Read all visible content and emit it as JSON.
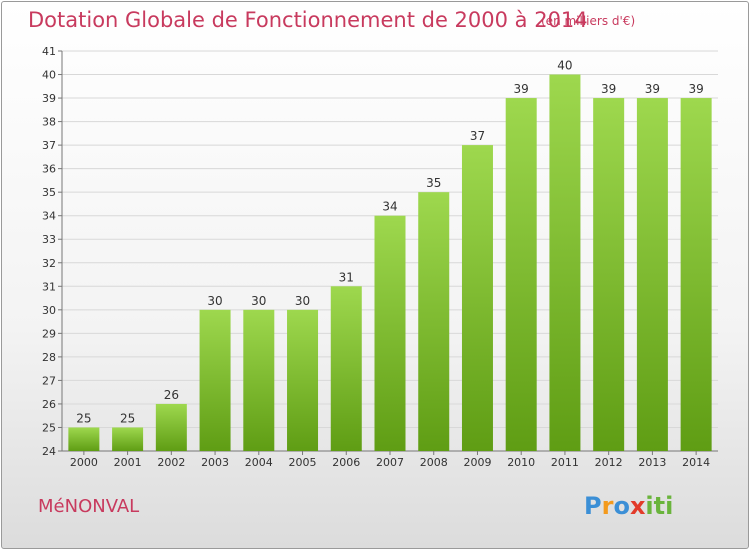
{
  "header": {
    "title": "Dotation Globale de Fonctionnement de 2000 à 2014",
    "subtitle": "(en milliers d'€)"
  },
  "footer": {
    "commune": "MéNONVAL",
    "logo_letters": [
      "P",
      "r",
      "o",
      "x",
      "i",
      "ti"
    ]
  },
  "colors": {
    "bar_top": "#9ed84e",
    "bar_bottom": "#5f9d14",
    "title": "#c83a5e"
  },
  "chart_data": {
    "type": "bar",
    "categories": [
      "2000",
      "2001",
      "2002",
      "2003",
      "2004",
      "2005",
      "2006",
      "2007",
      "2008",
      "2009",
      "2010",
      "2011",
      "2012",
      "2013",
      "2014"
    ],
    "values": [
      25,
      25,
      26,
      30,
      30,
      30,
      31,
      34,
      35,
      37,
      39,
      40,
      39,
      39,
      39
    ],
    "ylim": [
      24,
      41
    ],
    "yticks": [
      24,
      25,
      26,
      27,
      28,
      29,
      30,
      31,
      32,
      33,
      34,
      35,
      36,
      37,
      38,
      39,
      40,
      41
    ],
    "grid": true,
    "legend": "none"
  }
}
